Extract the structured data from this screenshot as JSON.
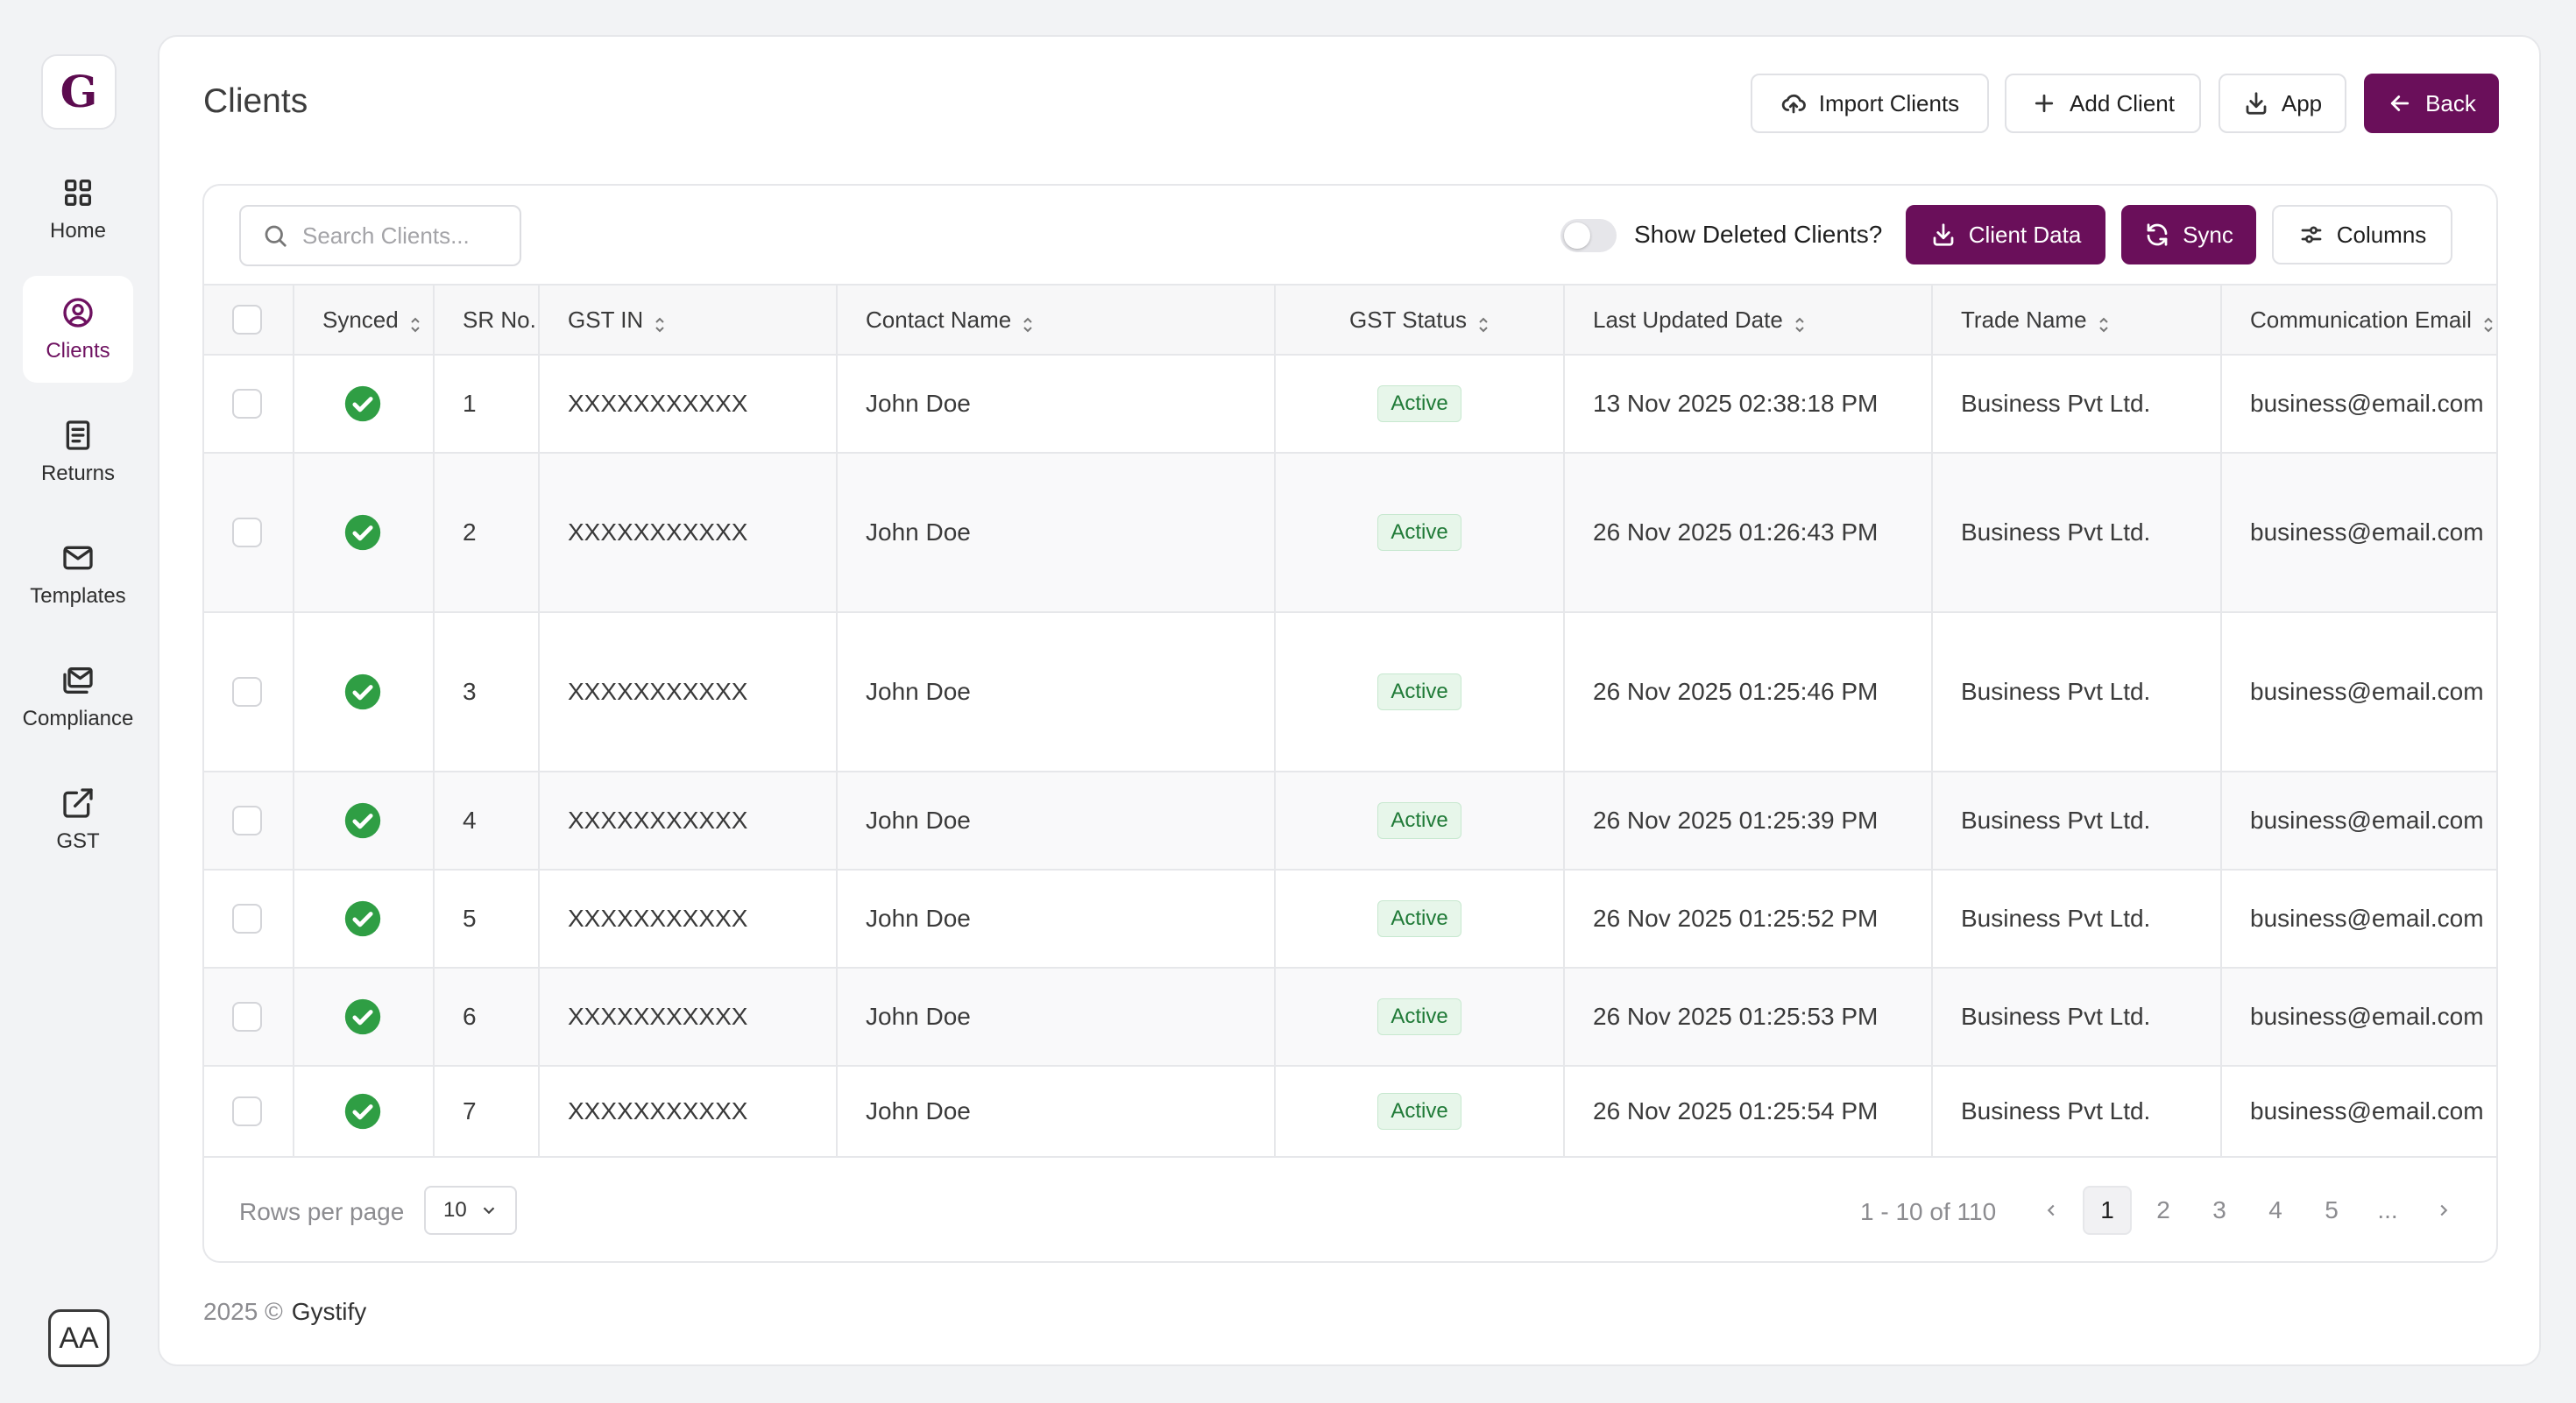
{
  "app": {
    "logo_letter": "G",
    "accent_color": "#6a0f5a"
  },
  "sidebar": {
    "items": [
      {
        "label": "Home",
        "icon": "grid-icon"
      },
      {
        "label": "Clients",
        "icon": "user-circle-icon",
        "active": true
      },
      {
        "label": "Returns",
        "icon": "document-icon"
      },
      {
        "label": "Templates",
        "icon": "mail-icon"
      },
      {
        "label": "Compliance",
        "icon": "mail-stack-icon"
      },
      {
        "label": "GST",
        "icon": "external-link-icon"
      }
    ],
    "font_toggle": "AA"
  },
  "header": {
    "title": "Clients",
    "import_label": "Import Clients",
    "add_label": "Add Client",
    "app_label": "App",
    "back_label": "Back"
  },
  "toolbar": {
    "search_placeholder": "Search Clients...",
    "show_deleted_label": "Show Deleted Clients?",
    "show_deleted_on": false,
    "client_data_label": "Client Data",
    "sync_label": "Sync",
    "columns_label": "Columns"
  },
  "table": {
    "columns": [
      "Synced",
      "SR No.",
      "GST IN",
      "Contact Name",
      "GST Status",
      "Last Updated Date",
      "Trade Name",
      "Communication Email"
    ],
    "rows": [
      {
        "synced": true,
        "sr": "1",
        "gstin": "XXXXXXXXXXX",
        "contact": "John Doe",
        "status": "Active",
        "updated": "13 Nov 2025 02:38:18 PM",
        "trade": "Business Pvt Ltd.",
        "email": "business@email.com"
      },
      {
        "synced": true,
        "sr": "2",
        "gstin": "XXXXXXXXXXX",
        "contact": "John Doe",
        "status": "Active",
        "updated": "26 Nov 2025 01:26:43 PM",
        "trade": "Business Pvt Ltd.",
        "email": "business@email.com"
      },
      {
        "synced": true,
        "sr": "3",
        "gstin": "XXXXXXXXXXX",
        "contact": "John Doe",
        "status": "Active",
        "updated": "26 Nov 2025 01:25:46 PM",
        "trade": "Business Pvt Ltd.",
        "email": "business@email.com"
      },
      {
        "synced": true,
        "sr": "4",
        "gstin": "XXXXXXXXXXX",
        "contact": "John Doe",
        "status": "Active",
        "updated": "26 Nov 2025 01:25:39 PM",
        "trade": "Business Pvt Ltd.",
        "email": "business@email.com"
      },
      {
        "synced": true,
        "sr": "5",
        "gstin": "XXXXXXXXXXX",
        "contact": "John Doe",
        "status": "Active",
        "updated": "26 Nov 2025 01:25:52 PM",
        "trade": "Business Pvt Ltd.",
        "email": "business@email.com"
      },
      {
        "synced": true,
        "sr": "6",
        "gstin": "XXXXXXXXXXX",
        "contact": "John Doe",
        "status": "Active",
        "updated": "26 Nov 2025 01:25:53 PM",
        "trade": "Business Pvt Ltd.",
        "email": "business@email.com"
      },
      {
        "synced": true,
        "sr": "7",
        "gstin": "XXXXXXXXXXX",
        "contact": "John Doe",
        "status": "Active",
        "updated": "26 Nov 2025 01:25:54 PM",
        "trade": "Business Pvt Ltd.",
        "email": "business@email.com"
      }
    ]
  },
  "pagination": {
    "rows_per_page_label": "Rows per page",
    "rows_per_page_value": "10",
    "range_text": "1 - 10 of 110",
    "pages": [
      "1",
      "2",
      "3",
      "4",
      "5",
      "..."
    ],
    "current_page": "1"
  },
  "footer": {
    "year_text": "2025 ©",
    "brand": "Gystify"
  }
}
